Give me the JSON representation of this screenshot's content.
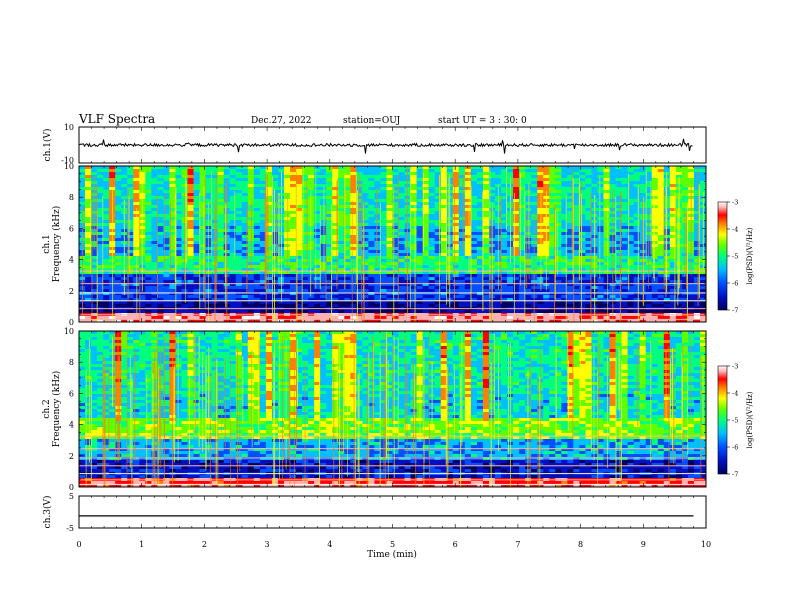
{
  "header": {
    "title": "VLF Spectra",
    "date": "Dec.27, 2022",
    "station": "station=OUJ",
    "start_ut": "start  UT =  3 : 30: 0"
  },
  "chart_data": [
    {
      "type": "line",
      "panel": "ch1-waveform",
      "ylabel": "ch.1(V)",
      "ylim": [
        -10,
        10
      ],
      "yticks": [
        "10",
        "-10"
      ],
      "baseline": 0,
      "description_color": "#000000"
    },
    {
      "type": "heatmap",
      "panel": "ch1-spectrogram",
      "ylabel_line1": "ch.1",
      "ylabel_line2": "Frequency (kHz)",
      "ylim": [
        0,
        10
      ],
      "yticks": [
        "0",
        "2",
        "4",
        "6",
        "8",
        "10"
      ],
      "colorbar": {
        "label": "log(PSD)(V²/Hz)",
        "range": [
          -7,
          -3
        ],
        "ticks": [
          "-3",
          "-4",
          "-5",
          "-6",
          "-7"
        ]
      }
    },
    {
      "type": "heatmap",
      "panel": "ch2-spectrogram",
      "ylabel_line1": "ch.2",
      "ylabel_line2": "Frequency (kHz)",
      "ylim": [
        0,
        10
      ],
      "yticks": [
        "0",
        "2",
        "4",
        "6",
        "8",
        "10"
      ],
      "colorbar": {
        "label": "log(PSD)(V²/Hz)",
        "range": [
          -7,
          -3
        ],
        "ticks": [
          "-3",
          "-4",
          "-5",
          "-6",
          "-7"
        ]
      }
    },
    {
      "type": "line",
      "panel": "ch3-waveform",
      "ylabel": "ch.3(V)",
      "ylim": [
        -5,
        5
      ],
      "yticks": [
        "5",
        "-5"
      ],
      "baseline": -1.2
    }
  ],
  "x_axis": {
    "label": "Time  (min)",
    "range": [
      0,
      10
    ],
    "ticks": [
      "0",
      "1",
      "2",
      "3",
      "4",
      "5",
      "6",
      "7",
      "8",
      "9",
      "10"
    ]
  },
  "colors": {
    "colormap": [
      "#000060",
      "#0010c0",
      "#0050ff",
      "#00c0ff",
      "#00ff80",
      "#60ff00",
      "#ffff00",
      "#ff8000",
      "#ff0000",
      "#ffb0b0",
      "#ffffff"
    ]
  }
}
